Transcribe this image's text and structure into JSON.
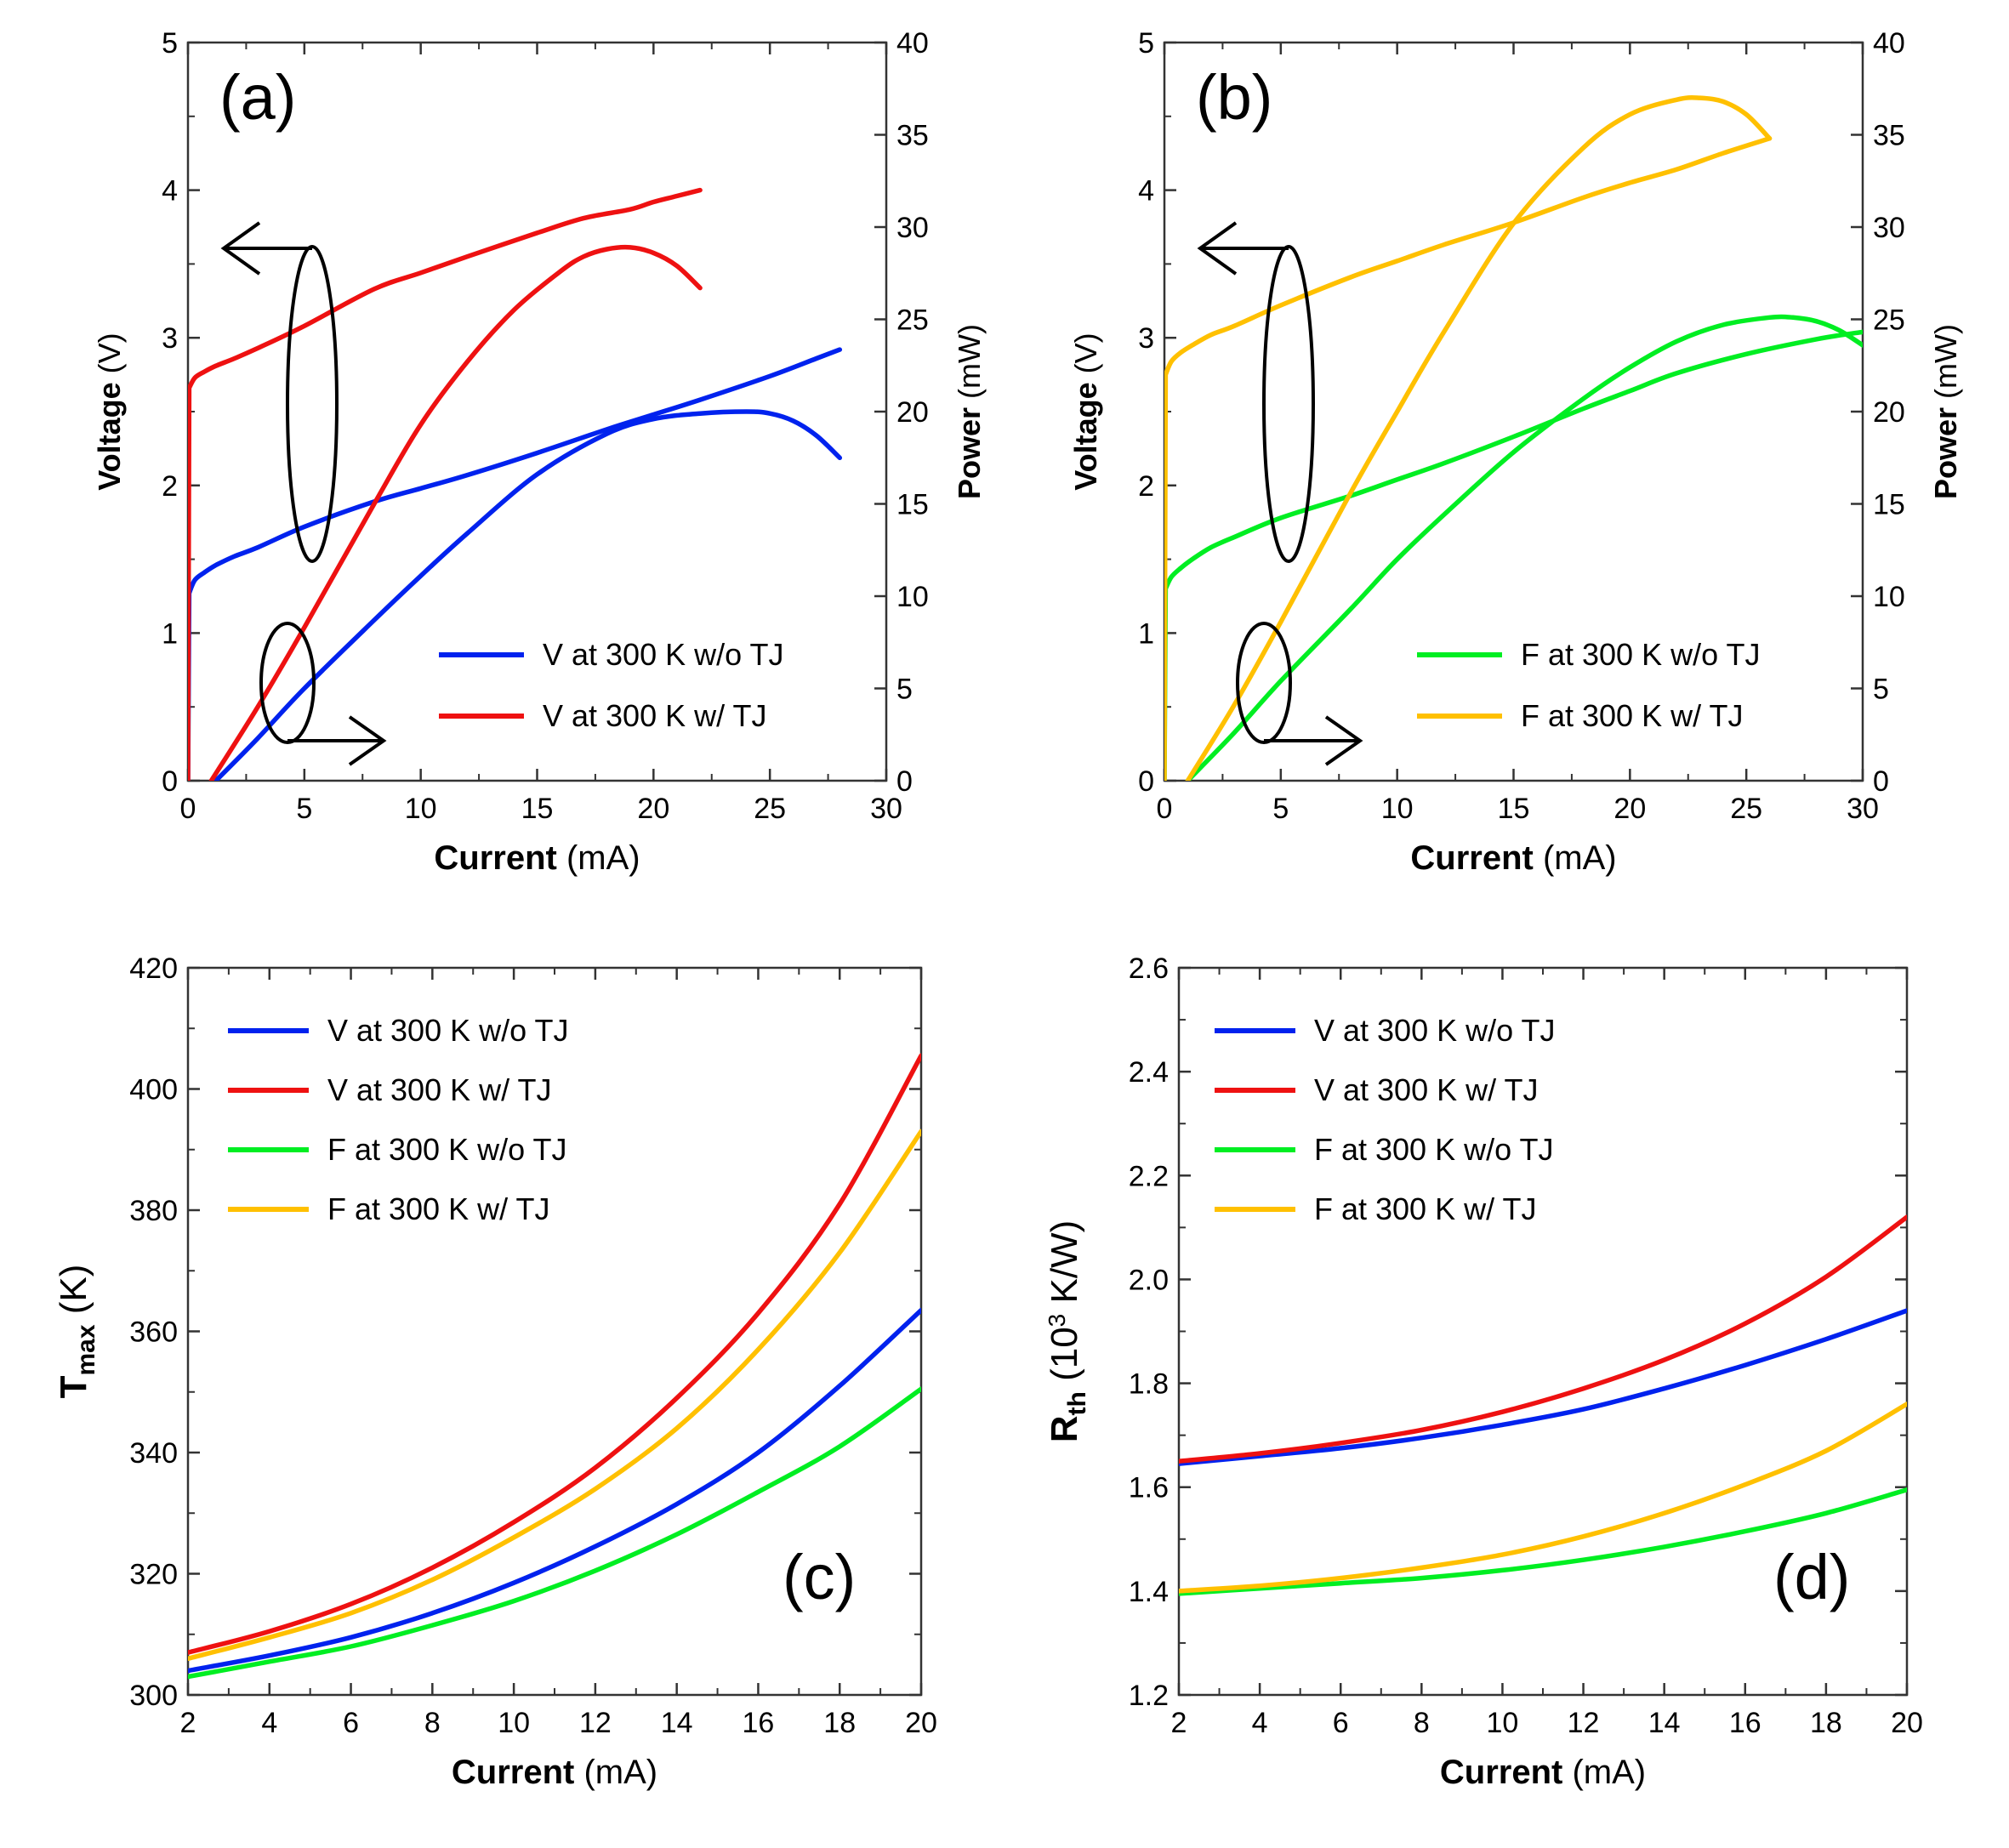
{
  "chart_data": [
    {
      "type": "line",
      "panel_label": "(a)",
      "xlabel_bold": "Current",
      "xlabel_unit": " (mA)",
      "ylabel_bold": "Voltage",
      "ylabel_unit": " (V)",
      "y2label_bold": "Power",
      "y2label_unit": " (mW)",
      "xlim": [
        0,
        30
      ],
      "ylim": [
        0,
        5
      ],
      "y2lim": [
        0,
        40
      ],
      "xticks": [
        "0",
        "5",
        "10",
        "15",
        "20",
        "25",
        "30"
      ],
      "yticks": [
        "0",
        "1",
        "2",
        "3",
        "4",
        "5"
      ],
      "y2ticks": [
        "0",
        "5",
        "10",
        "15",
        "20",
        "25",
        "30",
        "35",
        "40"
      ],
      "legend": [
        {
          "label": "V at 300 K w/o TJ",
          "color": "#0022ee"
        },
        {
          "label": "V at 300 K w/ TJ",
          "color": "#ee1111"
        }
      ],
      "series": [
        {
          "name": "V at 300 K w/o TJ",
          "quantity": "voltage",
          "color": "#0022ee",
          "axis": "left",
          "x": [
            0,
            0.05,
            0.3,
            0.7,
            1.2,
            2,
            3,
            5,
            8,
            10,
            12,
            15,
            18,
            20,
            22,
            25,
            27,
            28
          ],
          "y": [
            0,
            1.27,
            1.36,
            1.41,
            1.46,
            1.52,
            1.58,
            1.72,
            1.89,
            1.98,
            2.07,
            2.22,
            2.38,
            2.48,
            2.58,
            2.74,
            2.86,
            2.92
          ]
        },
        {
          "name": "V at 300 K w/o TJ",
          "quantity": "power",
          "color": "#0022ee",
          "axis": "right",
          "x": [
            1.2,
            3,
            5,
            8,
            10,
            12,
            15,
            18,
            20,
            22,
            24,
            25,
            26,
            27,
            28
          ],
          "y": [
            0,
            2.3,
            5,
            8.7,
            11.1,
            13.4,
            16.6,
            18.8,
            19.6,
            19.9,
            20.0,
            19.9,
            19.5,
            18.7,
            17.5
          ]
        },
        {
          "name": "V at 300 K w/ TJ",
          "quantity": "voltage",
          "color": "#ee1111",
          "axis": "left",
          "x": [
            0,
            0.05,
            0.3,
            0.7,
            1.2,
            2,
            3,
            5,
            8,
            10,
            12,
            15,
            17,
            19,
            20,
            21,
            22
          ],
          "y": [
            0,
            2.66,
            2.73,
            2.77,
            2.81,
            2.86,
            2.93,
            3.08,
            3.33,
            3.44,
            3.55,
            3.71,
            3.81,
            3.87,
            3.92,
            3.96,
            4.0
          ]
        },
        {
          "name": "V at 300 K w/ TJ",
          "quantity": "power",
          "color": "#ee1111",
          "axis": "right",
          "x": [
            1.0,
            3,
            5,
            8,
            10,
            12,
            14,
            16,
            17,
            18,
            19,
            20,
            21,
            22
          ],
          "y": [
            0,
            4.0,
            8.3,
            15.0,
            19.3,
            22.7,
            25.5,
            27.6,
            28.4,
            28.8,
            28.9,
            28.6,
            27.9,
            26.7
          ]
        }
      ]
    },
    {
      "type": "line",
      "panel_label": "(b)",
      "xlabel_bold": "Current",
      "xlabel_unit": " (mA)",
      "ylabel_bold": "Voltage",
      "ylabel_unit": " (V)",
      "y2label_bold": "Power",
      "y2label_unit": " (mW)",
      "xlim": [
        0,
        30
      ],
      "ylim": [
        0,
        5
      ],
      "y2lim": [
        0,
        40
      ],
      "xticks": [
        "0",
        "5",
        "10",
        "15",
        "20",
        "25",
        "30"
      ],
      "yticks": [
        "0",
        "1",
        "2",
        "3",
        "4",
        "5"
      ],
      "y2ticks": [
        "0",
        "5",
        "10",
        "15",
        "20",
        "25",
        "30",
        "35",
        "40"
      ],
      "legend": [
        {
          "label": "F at 300 K w/o TJ",
          "color": "#00ee22"
        },
        {
          "label": "F at 300 K w/ TJ",
          "color": "#ffc000"
        }
      ],
      "series": [
        {
          "name": "F at 300 K w/o TJ",
          "quantity": "voltage",
          "color": "#00ee22",
          "axis": "left",
          "x": [
            0,
            0.05,
            0.3,
            0.7,
            1.2,
            2,
            3,
            5,
            8,
            10,
            12,
            15,
            18,
            20,
            22,
            25,
            28,
            30
          ],
          "y": [
            0,
            1.3,
            1.38,
            1.44,
            1.5,
            1.58,
            1.65,
            1.78,
            1.93,
            2.04,
            2.15,
            2.33,
            2.52,
            2.64,
            2.76,
            2.89,
            2.99,
            3.04
          ]
        },
        {
          "name": "F at 300 K w/o TJ",
          "quantity": "power",
          "color": "#00ee22",
          "axis": "right",
          "x": [
            1.0,
            3,
            5,
            8,
            10,
            12,
            15,
            18,
            20,
            22,
            24,
            26,
            27,
            28,
            29,
            30
          ],
          "y": [
            0,
            2.6,
            5.4,
            9.3,
            12.0,
            14.4,
            17.8,
            20.7,
            22.4,
            23.8,
            24.7,
            25.1,
            25.1,
            24.9,
            24.4,
            23.6
          ]
        },
        {
          "name": "F at 300 K w/ TJ",
          "quantity": "voltage",
          "color": "#ffc000",
          "axis": "left",
          "x": [
            0,
            0.05,
            0.3,
            0.7,
            1.2,
            2,
            3,
            5,
            8,
            10,
            12,
            15,
            18,
            20,
            22,
            24,
            26
          ],
          "y": [
            0,
            2.75,
            2.84,
            2.9,
            2.95,
            3.02,
            3.08,
            3.22,
            3.41,
            3.52,
            3.63,
            3.78,
            3.95,
            4.05,
            4.14,
            4.25,
            4.35
          ]
        },
        {
          "name": "F at 300 K w/ TJ",
          "quantity": "power",
          "color": "#ffc000",
          "axis": "right",
          "x": [
            1.0,
            3,
            5,
            8,
            10,
            12,
            15,
            18,
            20,
            22,
            23,
            24,
            25,
            26
          ],
          "y": [
            0,
            4.1,
            8.6,
            15.6,
            20.0,
            24.3,
            30.2,
            34.3,
            36.1,
            36.9,
            37.0,
            36.8,
            36.1,
            34.8
          ]
        }
      ]
    },
    {
      "type": "line",
      "panel_label": "(c)",
      "xlabel_bold": "Current",
      "xlabel_unit": " (mA)",
      "ylabel_main": "T",
      "ylabel_sub": "max",
      "ylabel_unit": " (K)",
      "xlim": [
        2,
        20
      ],
      "ylim": [
        300,
        420
      ],
      "xticks": [
        "2",
        "4",
        "6",
        "8",
        "10",
        "12",
        "14",
        "16",
        "18",
        "20"
      ],
      "yticks": [
        "300",
        "320",
        "340",
        "360",
        "380",
        "400",
        "420"
      ],
      "legend": [
        {
          "label": "V at 300 K w/o TJ",
          "color": "#0022ee"
        },
        {
          "label": "V at 300 K w/ TJ",
          "color": "#ee1111"
        },
        {
          "label": "F at 300 K w/o TJ",
          "color": "#00ee22"
        },
        {
          "label": "F at 300 K w/ TJ",
          "color": "#ffc000"
        }
      ],
      "series": [
        {
          "name": "V at 300 K w/o TJ",
          "color": "#0022ee",
          "x": [
            2,
            4,
            6,
            8,
            10,
            12,
            14,
            16,
            18,
            20
          ],
          "y": [
            304,
            306.5,
            309.5,
            313.5,
            318.5,
            324.5,
            331.5,
            340,
            351,
            363.5
          ]
        },
        {
          "name": "V at 300 K w/ TJ",
          "color": "#ee1111",
          "x": [
            2,
            4,
            6,
            8,
            10,
            12,
            14,
            16,
            18,
            20
          ],
          "y": [
            307,
            310.5,
            315,
            321,
            328.5,
            337.5,
            349,
            363,
            381,
            405.5
          ]
        },
        {
          "name": "F at 300 K w/o TJ",
          "color": "#00ee22",
          "x": [
            2,
            4,
            6,
            8,
            10,
            12,
            14,
            16,
            18,
            20
          ],
          "y": [
            303,
            305.5,
            308,
            311.5,
            315.5,
            320.5,
            326.5,
            333.5,
            341,
            350.5
          ]
        },
        {
          "name": "F at 300 K w/ TJ",
          "color": "#ffc000",
          "x": [
            2,
            4,
            6,
            8,
            10,
            12,
            14,
            16,
            18,
            20
          ],
          "y": [
            306,
            309.5,
            313.5,
            319,
            326,
            334,
            344,
            357,
            373,
            393
          ]
        }
      ]
    },
    {
      "type": "line",
      "panel_label": "(d)",
      "xlabel_bold": "Current",
      "xlabel_unit": " (mA)",
      "ylabel_main": "R",
      "ylabel_sub": "th",
      "ylabel_unit": " (10",
      "ylabel_sup": "3",
      "ylabel_tail": " K/W)",
      "xlim": [
        2,
        20
      ],
      "ylim": [
        1.2,
        2.6
      ],
      "xticks": [
        "2",
        "4",
        "6",
        "8",
        "10",
        "12",
        "14",
        "16",
        "18",
        "20"
      ],
      "yticks": [
        "1.2",
        "1.4",
        "1.6",
        "1.8",
        "2.0",
        "2.2",
        "2.4",
        "2.6"
      ],
      "legend": [
        {
          "label": "V at 300 K w/o TJ",
          "color": "#0022ee"
        },
        {
          "label": "V at 300 K w/ TJ",
          "color": "#ee1111"
        },
        {
          "label": "F at 300 K w/o TJ",
          "color": "#00ee22"
        },
        {
          "label": "F at 300 K w/ TJ",
          "color": "#ffc000"
        }
      ],
      "series": [
        {
          "name": "V at 300 K w/o TJ",
          "color": "#0022ee",
          "x": [
            2,
            4,
            6,
            8,
            10,
            12,
            14,
            16,
            18,
            20
          ],
          "y": [
            1.645,
            1.66,
            1.675,
            1.695,
            1.72,
            1.75,
            1.79,
            1.835,
            1.885,
            1.94
          ]
        },
        {
          "name": "V at 300 K w/ TJ",
          "color": "#ee1111",
          "x": [
            2,
            4,
            6,
            8,
            10,
            12,
            14,
            16,
            18,
            20
          ],
          "y": [
            1.65,
            1.665,
            1.685,
            1.71,
            1.745,
            1.79,
            1.845,
            1.915,
            2.005,
            2.12
          ]
        },
        {
          "name": "F at 300 K w/o TJ",
          "color": "#00ee22",
          "x": [
            2,
            4,
            6,
            8,
            10,
            12,
            14,
            16,
            18,
            20
          ],
          "y": [
            1.395,
            1.405,
            1.415,
            1.425,
            1.44,
            1.46,
            1.485,
            1.515,
            1.55,
            1.595
          ]
        },
        {
          "name": "F at 300 K w/ TJ",
          "color": "#ffc000",
          "x": [
            2,
            4,
            6,
            8,
            10,
            12,
            14,
            16,
            18,
            20
          ],
          "y": [
            1.4,
            1.41,
            1.425,
            1.445,
            1.47,
            1.505,
            1.55,
            1.605,
            1.67,
            1.76
          ]
        }
      ]
    }
  ]
}
